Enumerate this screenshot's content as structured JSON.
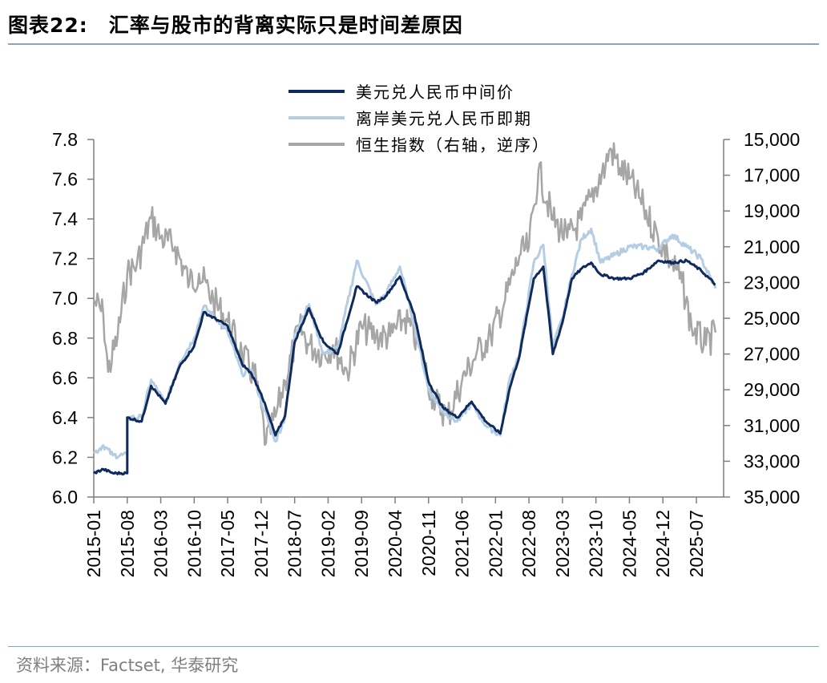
{
  "figure": {
    "label": "图表22:",
    "title": "汇率与股市的背离实际只是时间差原因",
    "source": "资料来源：Factset, 华泰研究"
  },
  "colors": {
    "series_mid": "#0f2a5c",
    "series_offshore": "#b5cde3",
    "series_hsi": "#a6a6a6",
    "axis": "#7f7f7f",
    "rule": "#8ea3b6"
  },
  "chart_data": {
    "type": "line",
    "title": "汇率与股市的背离实际只是时间差原因",
    "xlabel": "",
    "ylabel_left": "",
    "ylabel_right": "",
    "x_tick_labels": [
      "2015-01",
      "2015-08",
      "2016-03",
      "2016-10",
      "2017-05",
      "2017-12",
      "2018-07",
      "2019-02",
      "2019-09",
      "2020-04",
      "2020-11",
      "2021-06",
      "2022-01",
      "2022-08",
      "2023-03",
      "2023-10",
      "2024-05",
      "2024-12",
      "2025-07"
    ],
    "y_left": {
      "min": 6.0,
      "max": 7.8,
      "ticks": [
        "6.0",
        "6.2",
        "6.4",
        "6.6",
        "6.8",
        "7.0",
        "7.2",
        "7.4",
        "7.6",
        "7.8"
      ]
    },
    "y_right": {
      "min": 15000,
      "max": 35000,
      "inverted": true,
      "ticks": [
        "15,000",
        "17,000",
        "19,000",
        "21,000",
        "23,000",
        "25,000",
        "27,000",
        "29,000",
        "31,000",
        "33,000",
        "35,000"
      ]
    },
    "legend_position": "top-center",
    "series": [
      {
        "name": "美元兑人民币中间价",
        "axis": "left",
        "points": [
          [
            "2015-01",
            6.12
          ],
          [
            "2015-03",
            6.14
          ],
          [
            "2015-05",
            6.12
          ],
          [
            "2015-08",
            6.12
          ],
          [
            "2015-08",
            6.4
          ],
          [
            "2015-11",
            6.38
          ],
          [
            "2016-01",
            6.56
          ],
          [
            "2016-04",
            6.47
          ],
          [
            "2016-07",
            6.66
          ],
          [
            "2016-10",
            6.76
          ],
          [
            "2016-12",
            6.93
          ],
          [
            "2017-03",
            6.89
          ],
          [
            "2017-05",
            6.86
          ],
          [
            "2017-08",
            6.67
          ],
          [
            "2017-10",
            6.62
          ],
          [
            "2017-12",
            6.52
          ],
          [
            "2018-03",
            6.31
          ],
          [
            "2018-05",
            6.41
          ],
          [
            "2018-07",
            6.78
          ],
          [
            "2018-10",
            6.95
          ],
          [
            "2019-01",
            6.78
          ],
          [
            "2019-04",
            6.72
          ],
          [
            "2019-08",
            7.06
          ],
          [
            "2019-12",
            6.98
          ],
          [
            "2020-02",
            7.01
          ],
          [
            "2020-05",
            7.11
          ],
          [
            "2020-08",
            6.92
          ],
          [
            "2020-11",
            6.58
          ],
          [
            "2021-02",
            6.45
          ],
          [
            "2021-05",
            6.4
          ],
          [
            "2021-08",
            6.48
          ],
          [
            "2021-11",
            6.38
          ],
          [
            "2022-02",
            6.32
          ],
          [
            "2022-04",
            6.55
          ],
          [
            "2022-06",
            6.71
          ],
          [
            "2022-09",
            7.1
          ],
          [
            "2022-11",
            7.16
          ],
          [
            "2023-01",
            6.72
          ],
          [
            "2023-03",
            6.88
          ],
          [
            "2023-05",
            7.1
          ],
          [
            "2023-07",
            7.15
          ],
          [
            "2023-09",
            7.18
          ],
          [
            "2023-11",
            7.12
          ],
          [
            "2024-02",
            7.1
          ],
          [
            "2024-05",
            7.1
          ],
          [
            "2024-08",
            7.13
          ],
          [
            "2024-11",
            7.19
          ],
          [
            "2025-02",
            7.18
          ],
          [
            "2025-05",
            7.19
          ],
          [
            "2025-08",
            7.14
          ],
          [
            "2025-11",
            7.07
          ]
        ]
      },
      {
        "name": "离岸美元兑人民币即期",
        "axis": "left",
        "points": [
          [
            "2015-01",
            6.22
          ],
          [
            "2015-03",
            6.26
          ],
          [
            "2015-05",
            6.21
          ],
          [
            "2015-08",
            6.21
          ],
          [
            "2015-08",
            6.4
          ],
          [
            "2015-11",
            6.4
          ],
          [
            "2016-01",
            6.59
          ],
          [
            "2016-04",
            6.47
          ],
          [
            "2016-07",
            6.68
          ],
          [
            "2016-10",
            6.8
          ],
          [
            "2016-12",
            6.96
          ],
          [
            "2017-03",
            6.89
          ],
          [
            "2017-05",
            6.83
          ],
          [
            "2017-08",
            6.62
          ],
          [
            "2017-10",
            6.64
          ],
          [
            "2017-12",
            6.48
          ],
          [
            "2018-03",
            6.28
          ],
          [
            "2018-05",
            6.4
          ],
          [
            "2018-07",
            6.82
          ],
          [
            "2018-10",
            6.97
          ],
          [
            "2019-01",
            6.72
          ],
          [
            "2019-04",
            6.75
          ],
          [
            "2019-08",
            7.19
          ],
          [
            "2019-12",
            6.97
          ],
          [
            "2020-02",
            7.02
          ],
          [
            "2020-05",
            7.16
          ],
          [
            "2020-08",
            6.87
          ],
          [
            "2020-11",
            6.54
          ],
          [
            "2021-02",
            6.43
          ],
          [
            "2021-05",
            6.38
          ],
          [
            "2021-08",
            6.47
          ],
          [
            "2021-11",
            6.36
          ],
          [
            "2022-02",
            6.31
          ],
          [
            "2022-04",
            6.6
          ],
          [
            "2022-06",
            6.72
          ],
          [
            "2022-09",
            7.18
          ],
          [
            "2022-11",
            7.27
          ],
          [
            "2023-01",
            6.76
          ],
          [
            "2023-03",
            6.9
          ],
          [
            "2023-05",
            7.12
          ],
          [
            "2023-07",
            7.3
          ],
          [
            "2023-09",
            7.35
          ],
          [
            "2023-11",
            7.18
          ],
          [
            "2024-02",
            7.22
          ],
          [
            "2024-05",
            7.26
          ],
          [
            "2024-08",
            7.26
          ],
          [
            "2024-11",
            7.25
          ],
          [
            "2025-02",
            7.32
          ],
          [
            "2025-05",
            7.26
          ],
          [
            "2025-08",
            7.2
          ],
          [
            "2025-11",
            7.05
          ]
        ]
      },
      {
        "name": "恒生指数（右轴，逆序）",
        "axis": "right",
        "points": [
          [
            "2015-01",
            24000
          ],
          [
            "2015-03",
            24800
          ],
          [
            "2015-04",
            28000
          ],
          [
            "2015-06",
            26000
          ],
          [
            "2015-08",
            22500
          ],
          [
            "2015-10",
            22000
          ],
          [
            "2016-01",
            19400
          ],
          [
            "2016-03",
            20500
          ],
          [
            "2016-06",
            21000
          ],
          [
            "2016-09",
            23000
          ],
          [
            "2016-11",
            22500
          ],
          [
            "2017-02",
            24000
          ],
          [
            "2017-05",
            25200
          ],
          [
            "2017-08",
            27000
          ],
          [
            "2017-11",
            28500
          ],
          [
            "2018-01",
            32000
          ],
          [
            "2018-03",
            30500
          ],
          [
            "2018-05",
            28500
          ],
          [
            "2018-08",
            25500
          ],
          [
            "2018-10",
            26500
          ],
          [
            "2019-01",
            27000
          ],
          [
            "2019-03",
            26500
          ],
          [
            "2019-06",
            28000
          ],
          [
            "2019-09",
            25500
          ],
          [
            "2019-12",
            26000
          ],
          [
            "2020-03",
            26000
          ],
          [
            "2020-06",
            25000
          ],
          [
            "2020-09",
            26500
          ],
          [
            "2020-12",
            29500
          ],
          [
            "2021-03",
            30500
          ],
          [
            "2021-06",
            28500
          ],
          [
            "2021-09",
            27000
          ],
          [
            "2021-12",
            26000
          ],
          [
            "2022-03",
            24000
          ],
          [
            "2022-06",
            21500
          ],
          [
            "2022-08",
            21000
          ],
          [
            "2022-10",
            16700
          ],
          [
            "2023-01",
            19500
          ],
          [
            "2023-04",
            20500
          ],
          [
            "2023-07",
            19500
          ],
          [
            "2023-09",
            18200
          ],
          [
            "2023-12",
            16500
          ],
          [
            "2024-01",
            15500
          ],
          [
            "2024-03",
            16600
          ],
          [
            "2024-05",
            17200
          ],
          [
            "2024-08",
            18800
          ],
          [
            "2024-11",
            20500
          ],
          [
            "2025-01",
            21500
          ],
          [
            "2025-04",
            23000
          ],
          [
            "2025-06",
            25500
          ],
          [
            "2025-09",
            26500
          ],
          [
            "2025-11",
            25800
          ]
        ]
      }
    ]
  }
}
